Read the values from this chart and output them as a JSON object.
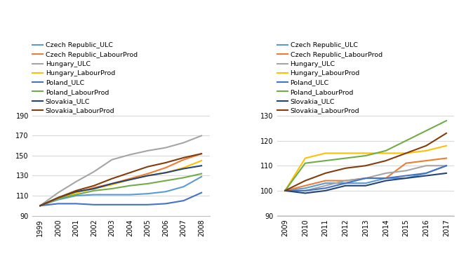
{
  "left": {
    "years": [
      1999,
      2000,
      2001,
      2002,
      2003,
      2004,
      2005,
      2006,
      2007,
      2008
    ],
    "series": {
      "Czech Republic_ULC": {
        "color": "#5B9BD5",
        "values": [
          100,
          106,
          110,
          111,
          111,
          111,
          112,
          114,
          119,
          129
        ]
      },
      "Czech Republic_LabourProd": {
        "color": "#ED7D31",
        "values": [
          100,
          107,
          113,
          118,
          122,
          127,
          132,
          138,
          146,
          152
        ]
      },
      "Hungary_ULC": {
        "color": "#A5A5A5",
        "values": [
          100,
          113,
          124,
          134,
          146,
          151,
          155,
          158,
          163,
          170
        ]
      },
      "Hungary_LabourProd": {
        "color": "#FFC000",
        "values": [
          100,
          107,
          113,
          117,
          121,
          126,
          130,
          133,
          138,
          145
        ]
      },
      "Poland_ULC": {
        "color": "#4472C4",
        "values": [
          100,
          102,
          102,
          101,
          101,
          101,
          101,
          102,
          105,
          113
        ]
      },
      "Poland_LabourProd": {
        "color": "#70AD47",
        "values": [
          100,
          107,
          111,
          115,
          117,
          120,
          122,
          125,
          128,
          132
        ]
      },
      "Slovakia_ULC": {
        "color": "#264478",
        "values": [
          100,
          108,
          114,
          117,
          122,
          126,
          130,
          133,
          137,
          140
        ]
      },
      "Slovakia_LabourProd": {
        "color": "#843C0C",
        "values": [
          100,
          108,
          115,
          120,
          127,
          133,
          139,
          143,
          148,
          152
        ]
      }
    },
    "ylim": [
      90,
      190
    ],
    "yticks": [
      90,
      110,
      130,
      150,
      170,
      190
    ]
  },
  "right": {
    "years": [
      2009,
      2010,
      2011,
      2012,
      2013,
      2014,
      2015,
      2016,
      2017
    ],
    "series": {
      "Czech Republic_ULC": {
        "color": "#5B9BD5",
        "values": [
          100,
          101,
          103,
          103,
          103,
          105,
          105,
          107,
          110
        ]
      },
      "Czech Republic_LabourProd": {
        "color": "#ED7D31",
        "values": [
          100,
          102,
          104,
          104,
          105,
          105,
          111,
          112,
          113
        ]
      },
      "Hungary_ULC": {
        "color": "#A5A5A5",
        "values": [
          100,
          100,
          102,
          104,
          105,
          107,
          108,
          110,
          110
        ]
      },
      "Hungary_LabourProd": {
        "color": "#FFC000",
        "values": [
          100,
          113,
          115,
          115,
          115,
          115,
          115,
          116,
          118
        ]
      },
      "Poland_ULC": {
        "color": "#4472C4",
        "values": [
          100,
          100,
          101,
          103,
          105,
          105,
          106,
          107,
          110
        ]
      },
      "Poland_LabourProd": {
        "color": "#70AD47",
        "values": [
          100,
          111,
          112,
          113,
          114,
          116,
          120,
          124,
          128
        ]
      },
      "Slovakia_ULC": {
        "color": "#264478",
        "values": [
          100,
          99,
          100,
          102,
          102,
          104,
          105,
          106,
          107
        ]
      },
      "Slovakia_LabourProd": {
        "color": "#843C0C",
        "values": [
          100,
          104,
          107,
          109,
          110,
          112,
          115,
          118,
          123
        ]
      }
    },
    "ylim": [
      90,
      130
    ],
    "yticks": [
      90,
      100,
      110,
      120,
      130
    ]
  },
  "legend_order": [
    "Czech Republic_ULC",
    "Czech Republic_LabourProd",
    "Hungary_ULC",
    "Hungary_LabourProd",
    "Poland_ULC",
    "Poland_LabourProd",
    "Slovakia_ULC",
    "Slovakia_LabourProd"
  ],
  "line_width": 1.5,
  "legend_fontsize": 6.8,
  "tick_fontsize": 7.0
}
